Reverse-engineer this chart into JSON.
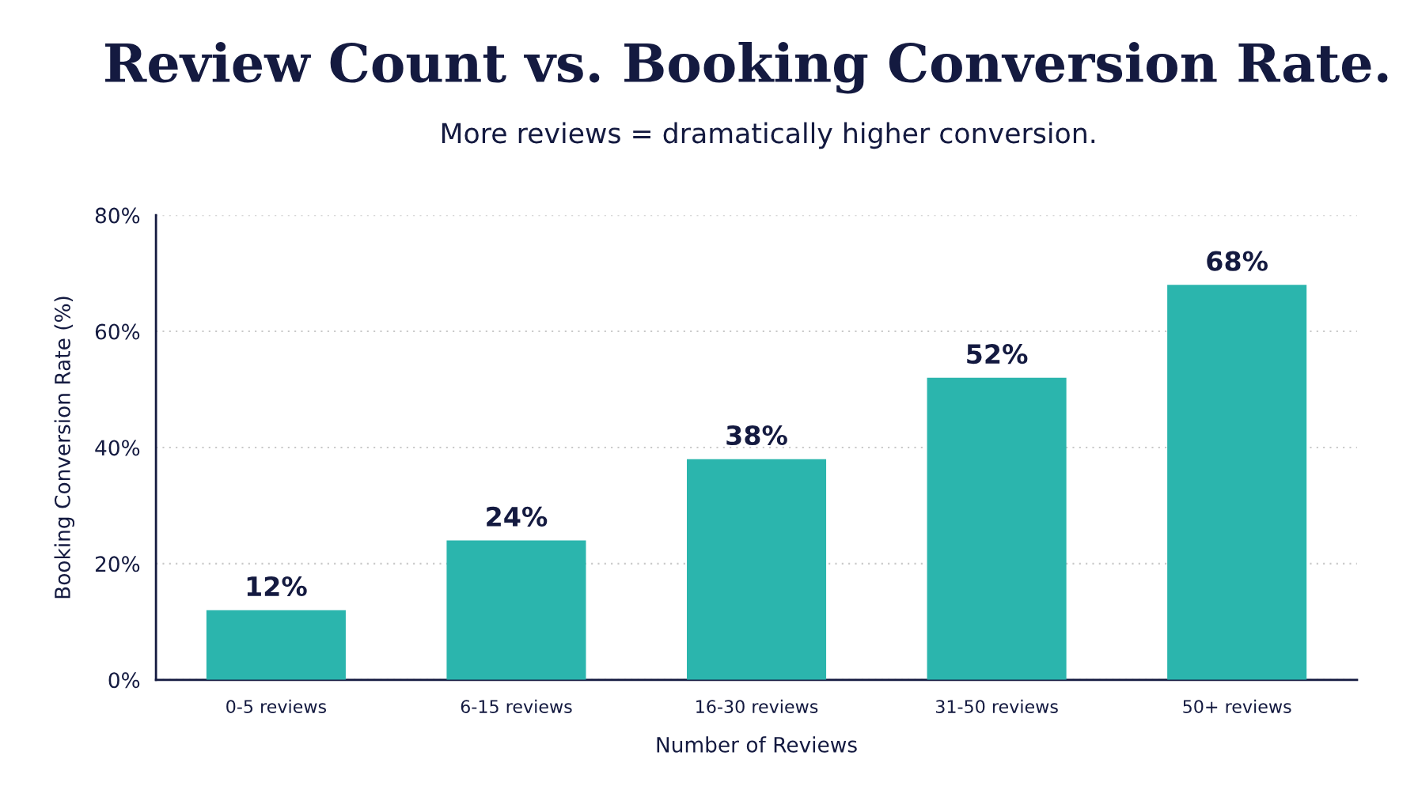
{
  "chart_data": {
    "type": "bar",
    "title": "Review Count vs. Booking Conversion Rate.",
    "subtitle": "More reviews = dramatically higher conversion.",
    "xlabel": "Number of Reviews",
    "ylabel": "Booking Conversion Rate (%)",
    "categories": [
      "0-5 reviews",
      "6-15 reviews",
      "16-30 reviews",
      "31-50 reviews",
      "50+ reviews"
    ],
    "values": [
      12,
      24,
      38,
      52,
      68
    ],
    "color": "#2bb5ad",
    "value_labels": [
      "12%",
      "24%",
      "38%",
      "52%",
      "68%"
    ],
    "ylim": [
      0,
      80
    ],
    "yticks": [
      {
        "value": 0,
        "label": "0%"
      },
      {
        "value": 20,
        "label": "20%"
      },
      {
        "value": 40,
        "label": "40%"
      },
      {
        "value": 60,
        "label": "60%"
      },
      {
        "value": 80,
        "label": "80%"
      }
    ],
    "grid": "y",
    "legend": false
  }
}
